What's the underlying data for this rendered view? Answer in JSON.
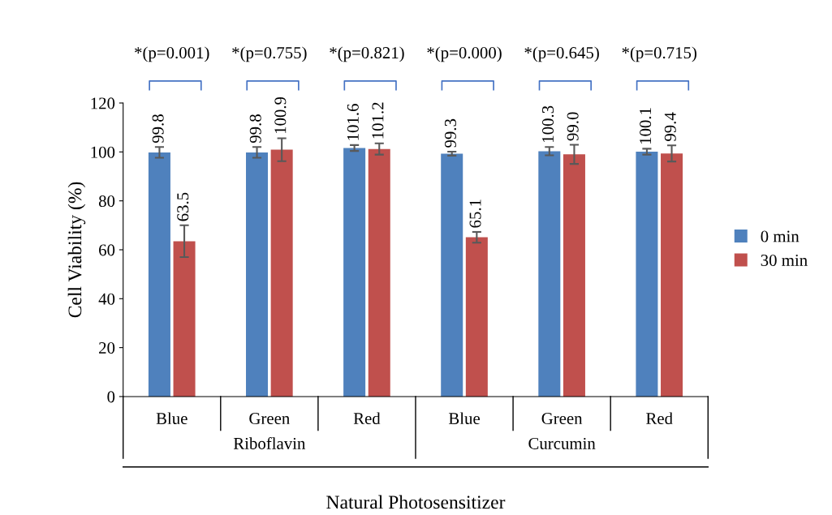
{
  "chart_data": {
    "type": "bar",
    "xlabel": "Natural Photosensitizer",
    "ylabel": "Cell Viability (%)",
    "categories": [
      "Blue",
      "Green",
      "Red",
      "Blue",
      "Green",
      "Red"
    ],
    "series": [
      {
        "name": "0 min",
        "color": "#4f81bd",
        "values": [
          99.8,
          99.8,
          101.6,
          99.3,
          100.3,
          100.1
        ],
        "errors": [
          2.2,
          2.2,
          1.2,
          0.8,
          1.7,
          1.2
        ],
        "value_labels": [
          "99.8",
          "99.8",
          "101.6",
          "99.3",
          "100.3",
          "100.1"
        ]
      },
      {
        "name": "30 min",
        "color": "#c0504d",
        "values": [
          63.5,
          100.9,
          101.2,
          65.1,
          99.0,
          99.4
        ],
        "errors": [
          6.5,
          4.7,
          2.3,
          2.2,
          3.9,
          3.3
        ],
        "value_labels": [
          "63.5",
          "100.9",
          "101.2",
          "65.1",
          "99.0",
          "99.4"
        ]
      }
    ],
    "ylim": [
      0,
      120
    ],
    "yticks": [
      0,
      20,
      40,
      60,
      80,
      100,
      120
    ],
    "grid": false,
    "legend": "right",
    "annotations": [
      "*(p=0.001)",
      "*(p=0.755)",
      "*(p=0.821)",
      "*(p=0.000)",
      "*(p=0.645)",
      "*(p=0.715)",
      "Riboflavin",
      "Curcumin"
    ]
  }
}
